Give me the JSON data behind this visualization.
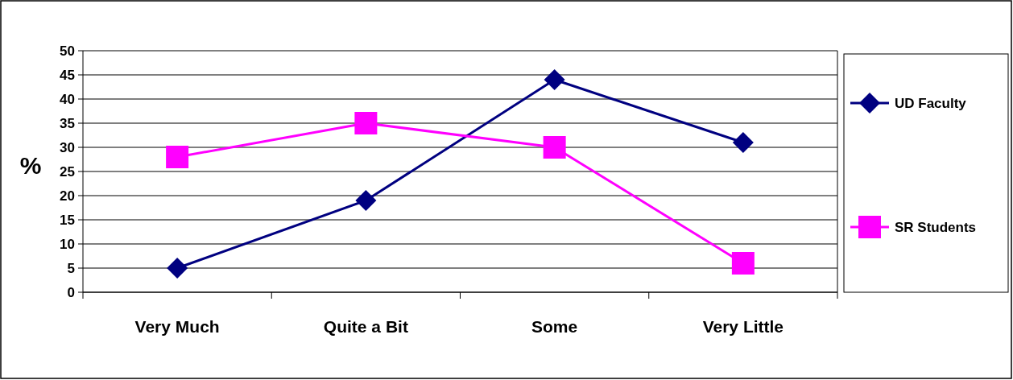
{
  "chart_data": {
    "type": "line",
    "ylabel": "%",
    "categories": [
      "Very Much",
      "Quite a Bit",
      "Some",
      "Very Little"
    ],
    "series": [
      {
        "name": "UD Faculty",
        "color": "#000080",
        "values": [
          5,
          19,
          44,
          31
        ],
        "marker": "diamond"
      },
      {
        "name": "SR Students",
        "color": "#ff00ff",
        "values": [
          28,
          35,
          30,
          6
        ],
        "marker": "square"
      }
    ],
    "ylim": [
      0,
      50
    ],
    "yticks": [
      0,
      5,
      10,
      15,
      20,
      25,
      30,
      35,
      40,
      45,
      50
    ],
    "grid": "y",
    "legend": "right",
    "line_style": "solid"
  }
}
